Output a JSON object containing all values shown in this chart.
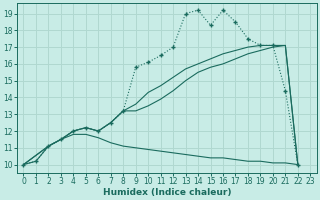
{
  "bg_color": "#c8ece6",
  "grid_color": "#b0d8d0",
  "line_color": "#1a6b5e",
  "xlabel": "Humidex (Indice chaleur)",
  "xlim": [
    -0.5,
    23.5
  ],
  "ylim": [
    9.5,
    19.6
  ],
  "xticks": [
    0,
    1,
    2,
    3,
    4,
    5,
    6,
    7,
    8,
    9,
    10,
    11,
    12,
    13,
    14,
    15,
    16,
    17,
    18,
    19,
    20,
    21,
    22,
    23
  ],
  "yticks": [
    10,
    11,
    12,
    13,
    14,
    15,
    16,
    17,
    18,
    19
  ],
  "line1_x": [
    0,
    1,
    2,
    3,
    4,
    5,
    6,
    7,
    8,
    9,
    10,
    11,
    12,
    13,
    14,
    15,
    16,
    17,
    18,
    19,
    20,
    21,
    22
  ],
  "line1_y": [
    10,
    10.2,
    11.1,
    11.5,
    12.0,
    12.2,
    12.0,
    12.5,
    13.2,
    15.8,
    16.1,
    16.5,
    17.0,
    19.0,
    19.2,
    18.3,
    19.2,
    18.5,
    17.5,
    17.1,
    17.1,
    14.4,
    10.0
  ],
  "line2_x": [
    0,
    2,
    3,
    4,
    5,
    6,
    7,
    8,
    9,
    10,
    11,
    12,
    13,
    14,
    15,
    16,
    17,
    18,
    19,
    20,
    21,
    22
  ],
  "line2_y": [
    10,
    11.1,
    11.5,
    12.0,
    12.2,
    12.0,
    12.5,
    13.2,
    13.6,
    14.3,
    14.7,
    15.2,
    15.7,
    16.0,
    16.3,
    16.6,
    16.8,
    17.0,
    17.1,
    17.1,
    17.1,
    10.0
  ],
  "line3_x": [
    0,
    2,
    3,
    4,
    5,
    6,
    7,
    8,
    9,
    10,
    11,
    12,
    13,
    14,
    15,
    16,
    17,
    18,
    19,
    20,
    21,
    22
  ],
  "line3_y": [
    10,
    11.1,
    11.5,
    12.0,
    12.2,
    12.0,
    12.5,
    13.2,
    13.2,
    13.5,
    13.9,
    14.4,
    15.0,
    15.5,
    15.8,
    16.0,
    16.3,
    16.6,
    16.8,
    17.0,
    17.1,
    10.0
  ],
  "line4_x": [
    0,
    1,
    2,
    3,
    4,
    5,
    6,
    7,
    8,
    9,
    10,
    11,
    12,
    13,
    14,
    15,
    16,
    17,
    18,
    19,
    20,
    21,
    22
  ],
  "line4_y": [
    10,
    10.2,
    11.1,
    11.5,
    11.8,
    11.8,
    11.6,
    11.3,
    11.1,
    11.0,
    10.9,
    10.8,
    10.7,
    10.6,
    10.5,
    10.4,
    10.4,
    10.3,
    10.2,
    10.2,
    10.1,
    10.1,
    10.0
  ]
}
